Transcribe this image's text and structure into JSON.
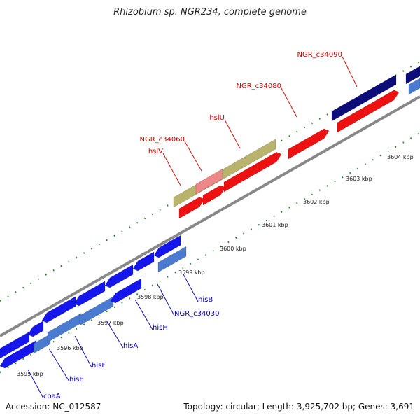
{
  "title": "Rhizobium sp. NGR234, complete genome",
  "footer": {
    "accession": "Accession: NC_012587",
    "summary": "Topology: circular; Length: 3,925,702 bp; Genes: 3,691"
  },
  "colors": {
    "forward_gene": "#ee1111",
    "reverse_gene": "#1515ee",
    "reverse_gene_alt": "#4b7bd0",
    "dark_gene": "#0d0d7a",
    "olive_gene": "#b9b36c",
    "pink_overlap": "#ee8888",
    "backbone": "#888888",
    "tick": "#1a7a1a",
    "label_red": "#cc0000",
    "label_blue": "#0000aa"
  },
  "ticks": [
    "3595 kbp",
    "3596 kbp",
    "3597 kbp",
    "3598 kbp",
    "3599 kbp",
    "3600 kbp",
    "3601 kbp",
    "3602 kbp",
    "3603 kbp",
    "3604 kbp"
  ],
  "gene_labels": {
    "forward": [
      "hslV",
      "NGR_c34060",
      "hslU",
      "NGR_c34080",
      "NGR_c34090"
    ],
    "reverse": [
      "coaA",
      "hisE",
      "hisF",
      "hisA",
      "hisH",
      "NGR_c34030",
      "hisB"
    ]
  }
}
